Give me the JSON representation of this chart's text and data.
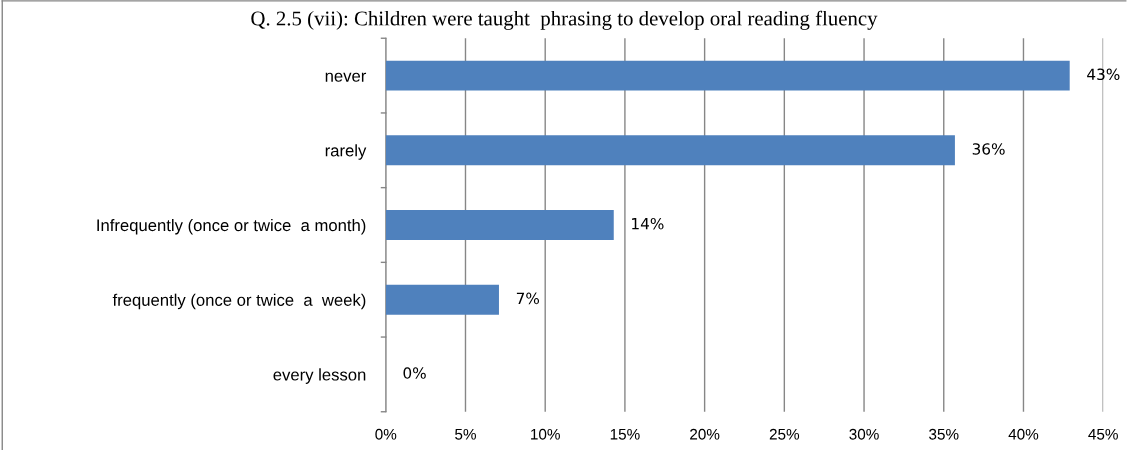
{
  "chart_data": {
    "type": "bar",
    "orientation": "horizontal",
    "title": "Q. 2.5 (vii): Children were taught  phrasing to develop oral reading fluency",
    "categories": [
      "never",
      "rarely",
      "Infrequently (once or twice  a month)",
      "frequently (once or twice  a  week)",
      "every lesson"
    ],
    "values": [
      42.9,
      35.7,
      14.3,
      7.1,
      0
    ],
    "value_labels": [
      "43%",
      "36%",
      "14%",
      "7%",
      "0%"
    ],
    "color": "#4f81bd",
    "xlim": [
      0,
      45
    ],
    "xticks": [
      {
        "value": 0,
        "label": "0%"
      },
      {
        "value": 5,
        "label": "5%"
      },
      {
        "value": 10,
        "label": "10%"
      },
      {
        "value": 15,
        "label": "15%"
      },
      {
        "value": 20,
        "label": "20%"
      },
      {
        "value": 25,
        "label": "25%"
      },
      {
        "value": 30,
        "label": "30%"
      },
      {
        "value": 35,
        "label": "35%"
      },
      {
        "value": 40,
        "label": "40%"
      },
      {
        "value": 45,
        "label": "45%"
      }
    ],
    "grid": "x"
  }
}
